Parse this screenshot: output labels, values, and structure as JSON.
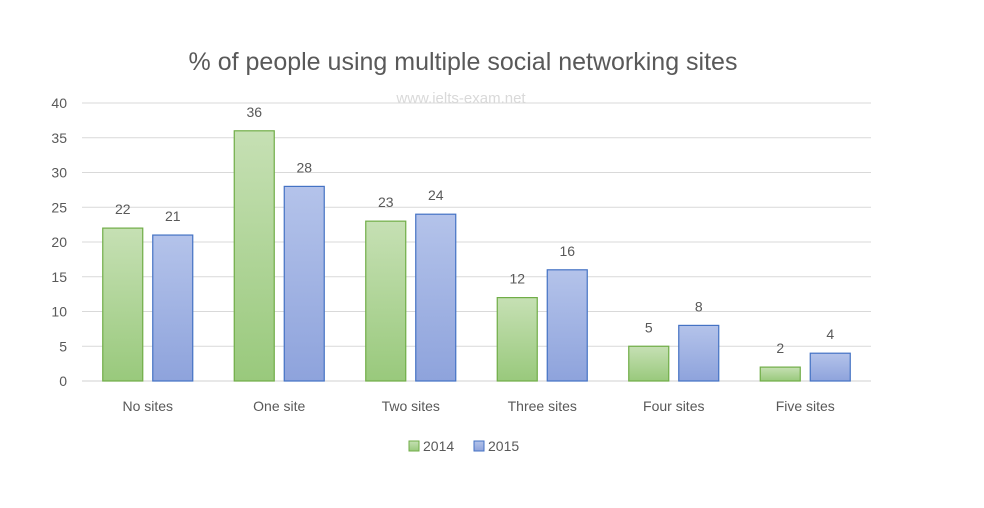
{
  "chart_data": {
    "type": "bar",
    "title": "% of people using multiple social networking sites",
    "watermark": "www.ielts-exam.net",
    "categories": [
      "No sites",
      "One site",
      "Two sites",
      "Three sites",
      "Four sites",
      "Five sites"
    ],
    "series": [
      {
        "name": "2014",
        "values": [
          22,
          36,
          23,
          12,
          5,
          2
        ],
        "color": "#a9d18e",
        "border": "#70ad47"
      },
      {
        "name": "2015",
        "values": [
          21,
          28,
          24,
          16,
          8,
          4
        ],
        "color": "#9dafe0",
        "border": "#4472c4"
      }
    ],
    "ylim": [
      0,
      40
    ],
    "yticks": [
      "0",
      "5",
      "10",
      "15",
      "20",
      "25",
      "30",
      "35",
      "40"
    ],
    "xlabel": "",
    "ylabel": "",
    "grid": true,
    "legend": "bottom"
  }
}
